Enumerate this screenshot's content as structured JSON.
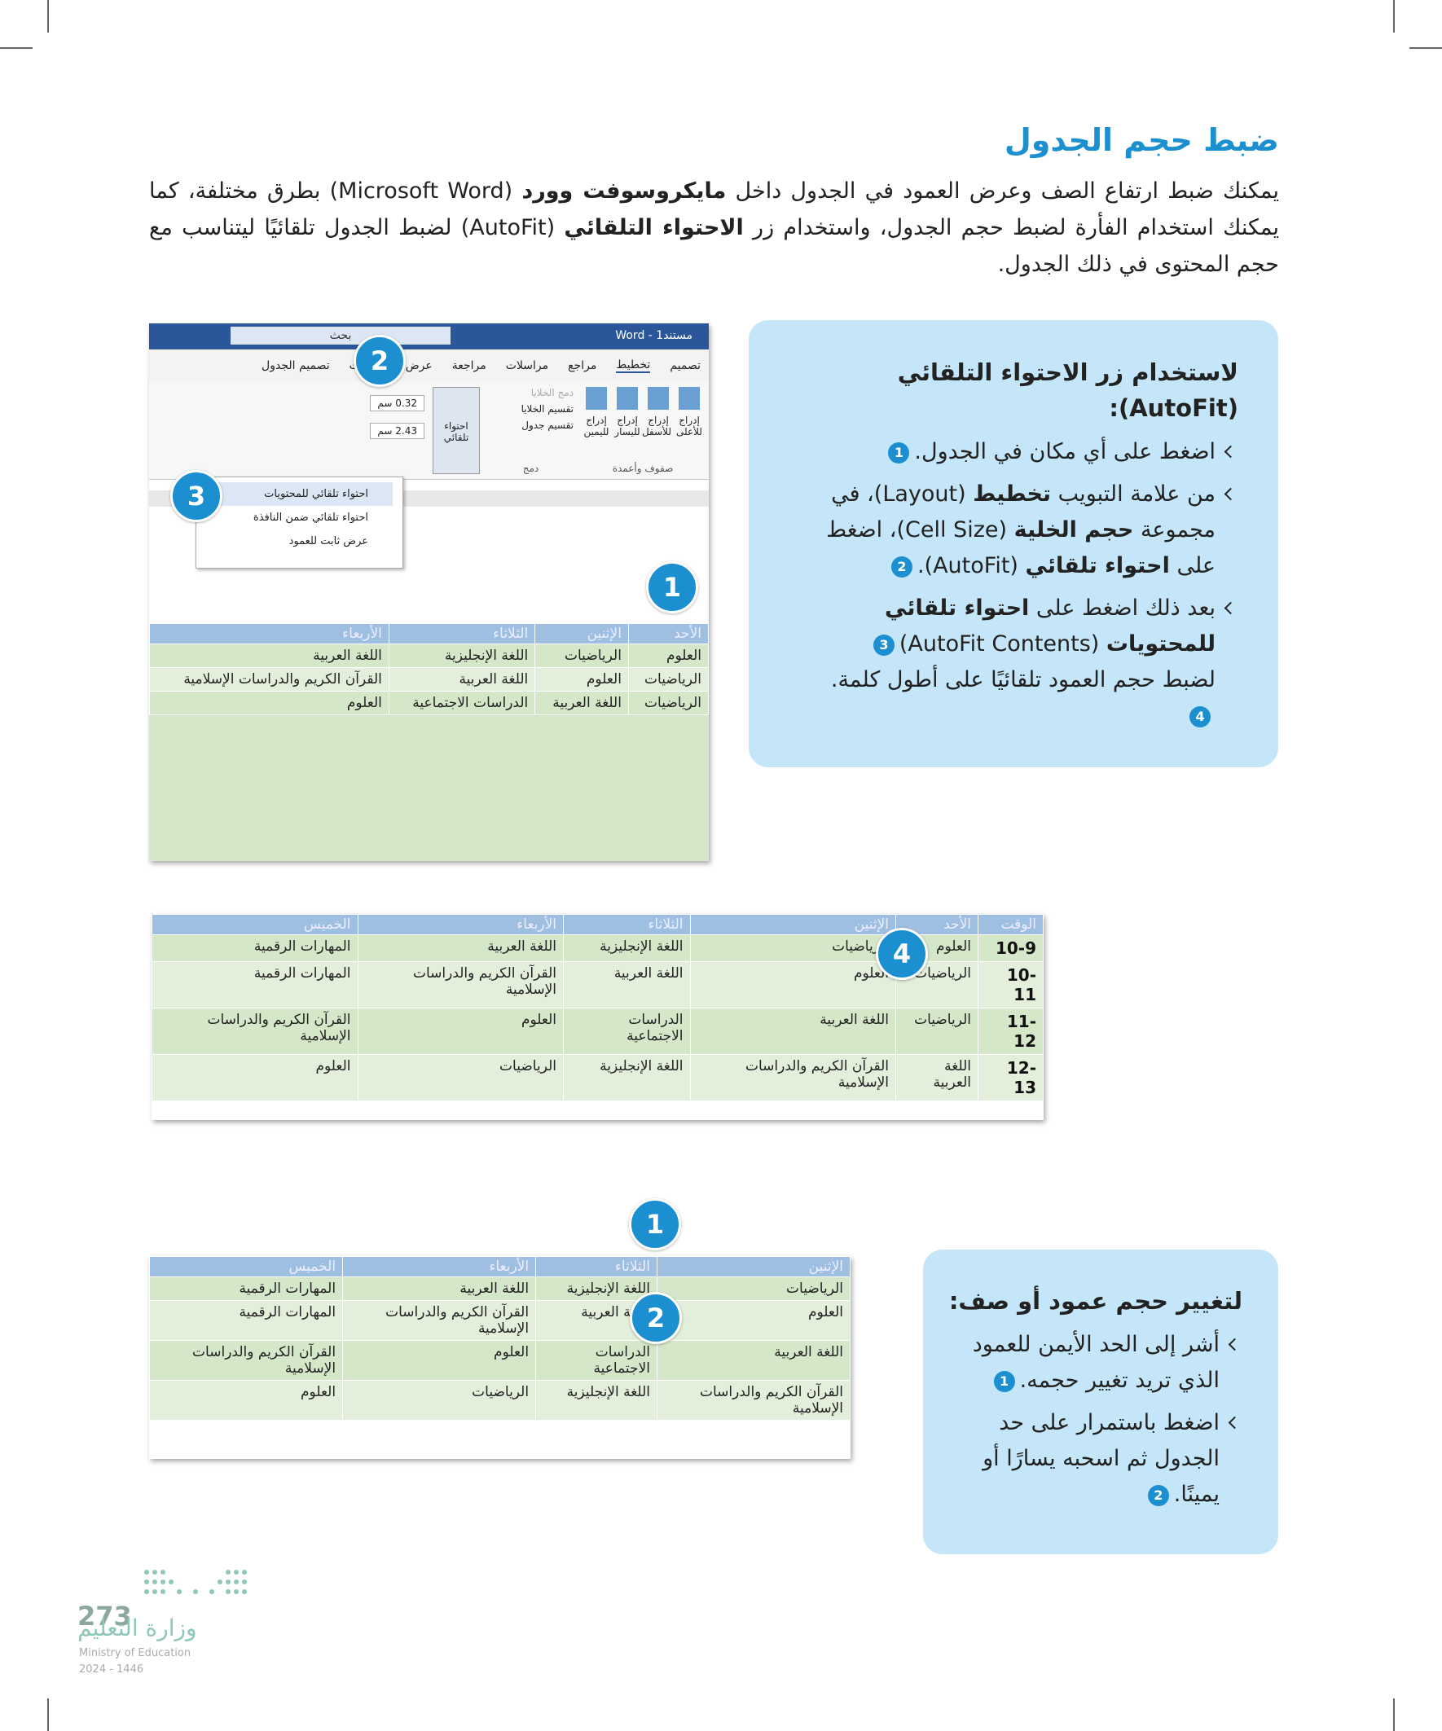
{
  "header": {
    "title": "ضبط حجم الجدول"
  },
  "intro": [
    {
      "text": "يمكنك ضبط ارتفاع الصف وعرض العمود في الجدول داخل "
    },
    {
      "text": "مايكروسوفت وورد",
      "bold": true
    },
    {
      "text": " (Microsoft Word) بطرق مختلفة، كما يمكنك استخدام الفأرة لضبط حجم الجدول، واستخدام زر "
    },
    {
      "text": "الاحتواء التلقائي",
      "bold": true
    },
    {
      "text": " (AutoFit) لضبط الجدول تلقائيًا ليتناسب مع حجم المحتوى في ذلك الجدول."
    }
  ],
  "autofit_box": {
    "title": "لاستخدام زر الاحتواء التلقائي (AutoFit):",
    "steps": [
      [
        {
          "text": "اضغط على أي مكان في الجدول."
        },
        {
          "badge": "1"
        }
      ],
      [
        {
          "text": "من علامة التبويب "
        },
        {
          "text": "تخطيط",
          "bold": true
        },
        {
          "text": " (Layout)، في مجموعة "
        },
        {
          "text": "حجم الخلية",
          "bold": true
        },
        {
          "text": " (Cell Size)، اضغط على "
        },
        {
          "text": "احتواء تلقائي",
          "bold": true
        },
        {
          "text": " (AutoFit)."
        },
        {
          "badge": "2"
        }
      ],
      [
        {
          "text": "بعد ذلك اضغط على "
        },
        {
          "text": "احتواء تلقائي للمحتويات",
          "bold": true
        },
        {
          "text": " (AutoFit Contents)"
        },
        {
          "badge": "3"
        },
        {
          "text": " لضبط حجم العمود تلقائيًا على أطول كلمة."
        },
        {
          "badge": "4"
        }
      ]
    ]
  },
  "screenshot1": {
    "app_title": "Word - مستند1",
    "search": "بحث",
    "tabs": [
      "تصميم",
      "تخطيط",
      "مراجع",
      "مراسلات",
      "مراجعة",
      "عرض",
      "تعليمات",
      "تصميم الجدول"
    ],
    "insert_buttons": [
      "إدراج للأعلى",
      "إدراج للأسفل",
      "إدراج لليسار",
      "إدراج لليمين"
    ],
    "rows_group": "صفوف وأعمدة",
    "merge_buttons": [
      "دمج الخلايا",
      "تقسيم الخلايا",
      "تقسيم جدول"
    ],
    "merge_group": "دمج",
    "autofit_button": "احتواء تلقائي",
    "sizes": [
      "0.32 سم",
      "2.43 سم"
    ],
    "menu": [
      "احتواء تلقائي للمحتويات",
      "احتواء تلقائي ضمن النافذة",
      "عرض ثابت للعمود"
    ],
    "badges": [
      "2",
      "3",
      "1"
    ],
    "table": {
      "headers": [
        "الأحد",
        "الإثنين",
        "الثلاثاء",
        "الأربعاء"
      ],
      "rows": [
        [
          "العلوم",
          "الرياضيات",
          "اللغة الإنجليزية",
          "اللغة العربية"
        ],
        [
          "الرياضيات",
          "العلوم",
          "اللغة العربية",
          "القرآن الكريم والدراسات الإسلامية"
        ],
        [
          "الرياضيات",
          "اللغة العربية",
          "الدراسات الاجتماعية",
          "العلوم"
        ]
      ]
    }
  },
  "table2": {
    "badge": "4",
    "headers": [
      "الوقت",
      "الأحد",
      "الإثنين",
      "الثلاثاء",
      "الأربعاء",
      "الخميس"
    ],
    "rows": [
      [
        "10-9",
        "العلوم",
        "الرياضيات",
        "اللغة الإنجليزية",
        "اللغة العربية",
        "المهارات الرقمية"
      ],
      [
        "10-11",
        "الرياضيات",
        "العلوم",
        "اللغة العربية",
        "القرآن الكريم والدراسات الإسلامية",
        "المهارات الرقمية"
      ],
      [
        "11-12",
        "الرياضيات",
        "اللغة العربية",
        "الدراسات الاجتماعية",
        "العلوم",
        "القرآن الكريم والدراسات الإسلامية"
      ],
      [
        "12-13",
        "اللغة العربية",
        "القرآن الكريم والدراسات الإسلامية",
        "اللغة الإنجليزية",
        "الرياضيات",
        "العلوم"
      ]
    ]
  },
  "table3": {
    "badges": [
      "1",
      "2"
    ],
    "headers": [
      "الإثنين",
      "الثلاثاء",
      "الأربعاء",
      "الخميس"
    ],
    "rows": [
      [
        "الرياضيات",
        "اللغة الإنجليزية",
        "اللغة العربية",
        "المهارات الرقمية"
      ],
      [
        "العلوم",
        "اللغة العربية",
        "القرآن الكريم والدراسات الإسلامية",
        "المهارات الرقمية"
      ],
      [
        "اللغة العربية",
        "الدراسات الاجتماعية",
        "العلوم",
        "القرآن الكريم والدراسات الإسلامية"
      ],
      [
        "القرآن الكريم والدراسات الإسلامية",
        "اللغة الإنجليزية",
        "الرياضيات",
        "العلوم"
      ]
    ]
  },
  "resize_box": {
    "title": "لتغيير حجم عمود أو صف:",
    "steps": [
      [
        {
          "text": "أشر إلى الحد الأيمن للعمود الذي تريد تغيير حجمه."
        },
        {
          "badge": "1"
        }
      ],
      [
        {
          "text": "اضغط باستمرار على حد الجدول ثم اسحبه يسارًا أو يمينًا."
        },
        {
          "badge": "2"
        }
      ]
    ]
  },
  "footer": {
    "page_number": "273",
    "ministry_ar": "وزارة التعليم",
    "ministry_en": "Ministry of Education",
    "year": "2024 - 1446"
  }
}
